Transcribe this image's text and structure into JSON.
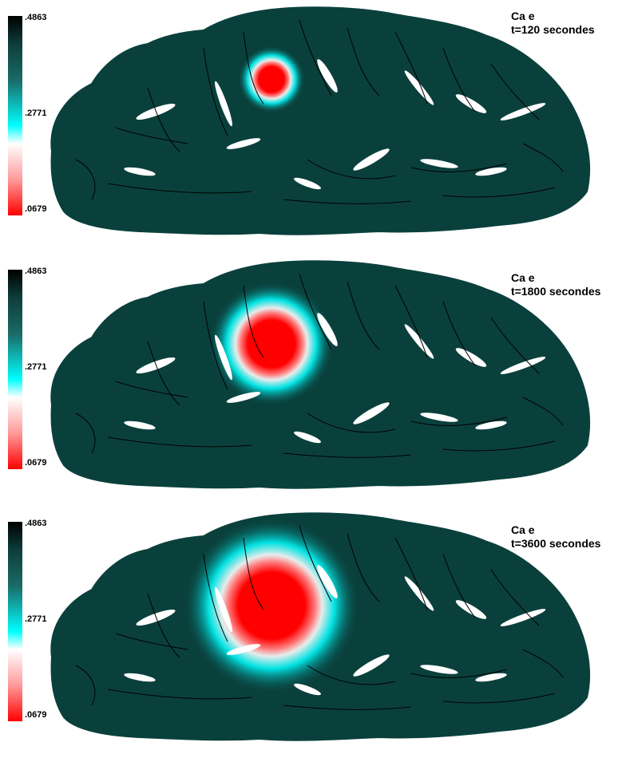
{
  "colorbar": {
    "max": ".4863",
    "mid": ".2771",
    "min": ".0679"
  },
  "colors": {
    "tissue": "#0a403c",
    "contour": "#000000",
    "sulcus": "#ffffff",
    "low": "#ff0000",
    "mid": "#00ffff",
    "high": "#000000"
  },
  "panels": [
    {
      "variable": "Ca e",
      "time": "t=120 secondes",
      "spread": 0.15
    },
    {
      "variable": "Ca e",
      "time": "t=1800 secondes",
      "spread": 0.6
    },
    {
      "variable": "Ca e",
      "time": "t=3600 secondes",
      "spread": 1.0
    }
  ]
}
